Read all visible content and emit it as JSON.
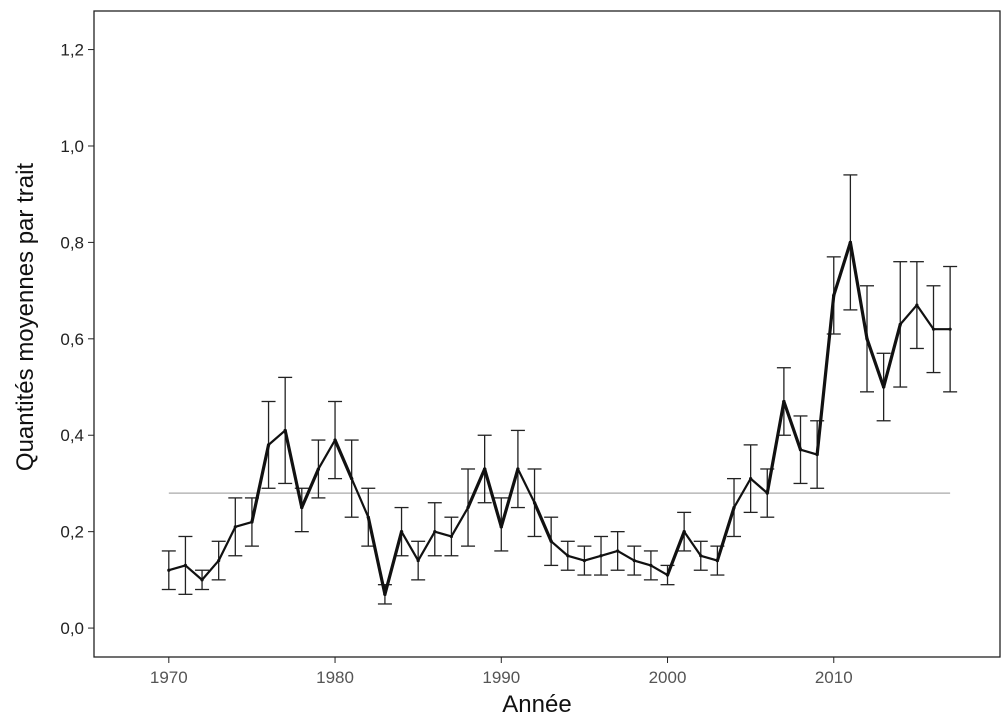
{
  "chart_data": {
    "type": "line",
    "title": "",
    "xlabel": "Année",
    "ylabel": "Quantités moyennes par trait",
    "xlim": [
      1965.5,
      2020
    ],
    "ylim": [
      -0.06,
      1.28
    ],
    "x_ticks": [
      1970,
      1980,
      1990,
      2000,
      2010
    ],
    "y_ticks": [
      0.0,
      0.2,
      0.4,
      0.6,
      0.8,
      1.0,
      1.2
    ],
    "y_tick_labels": [
      "0,0",
      "0,2",
      "0,4",
      "0,6",
      "0,8",
      "1,0",
      "1,2"
    ],
    "grid": false,
    "legend": "none",
    "reference_line": {
      "y": 0.28,
      "x_start": 1970,
      "x_end": 2017,
      "color": "#aaaaaa"
    },
    "series": [
      {
        "color": "#111111",
        "x": [
          1970,
          1971,
          1972,
          1973,
          1974,
          1975,
          1976,
          1977,
          1978,
          1979,
          1980,
          1981,
          1982,
          1983,
          1984,
          1985,
          1986,
          1987,
          1988,
          1989,
          1990,
          1991,
          1992,
          1993,
          1994,
          1995,
          1996,
          1997,
          1998,
          1999,
          2000,
          2001,
          2002,
          2003,
          2004,
          2005,
          2006,
          2007,
          2008,
          2009,
          2010,
          2011,
          2012,
          2013,
          2014,
          2015,
          2016,
          2017
        ],
        "y": [
          0.12,
          0.13,
          0.1,
          0.14,
          0.21,
          0.22,
          0.38,
          0.41,
          0.25,
          0.33,
          0.39,
          0.31,
          0.23,
          0.07,
          0.2,
          0.14,
          0.2,
          0.19,
          0.25,
          0.33,
          0.21,
          0.33,
          0.26,
          0.18,
          0.15,
          0.14,
          0.15,
          0.16,
          0.14,
          0.13,
          0.11,
          0.2,
          0.15,
          0.14,
          0.25,
          0.31,
          0.28,
          0.47,
          0.37,
          0.36,
          0.69,
          0.8,
          0.6,
          0.5,
          0.63,
          0.67,
          0.62,
          0.62
        ],
        "err_low": [
          0.08,
          0.07,
          0.08,
          0.1,
          0.15,
          0.17,
          0.29,
          0.3,
          0.2,
          0.27,
          0.31,
          0.23,
          0.17,
          0.05,
          0.15,
          0.1,
          0.15,
          0.15,
          0.17,
          0.26,
          0.16,
          0.25,
          0.19,
          0.13,
          0.12,
          0.11,
          0.11,
          0.12,
          0.11,
          0.1,
          0.09,
          0.16,
          0.12,
          0.11,
          0.19,
          0.24,
          0.23,
          0.4,
          0.3,
          0.29,
          0.61,
          0.66,
          0.49,
          0.43,
          0.5,
          0.58,
          0.53,
          0.49
        ],
        "err_high": [
          0.16,
          0.19,
          0.12,
          0.18,
          0.27,
          0.27,
          0.47,
          0.52,
          0.29,
          0.39,
          0.47,
          0.39,
          0.29,
          0.09,
          0.25,
          0.18,
          0.26,
          0.23,
          0.33,
          0.4,
          0.27,
          0.41,
          0.33,
          0.23,
          0.18,
          0.17,
          0.19,
          0.2,
          0.17,
          0.16,
          0.13,
          0.24,
          0.18,
          0.17,
          0.31,
          0.38,
          0.33,
          0.54,
          0.44,
          0.43,
          0.77,
          0.94,
          0.71,
          0.57,
          0.76,
          0.76,
          0.71,
          0.75
        ]
      }
    ]
  }
}
